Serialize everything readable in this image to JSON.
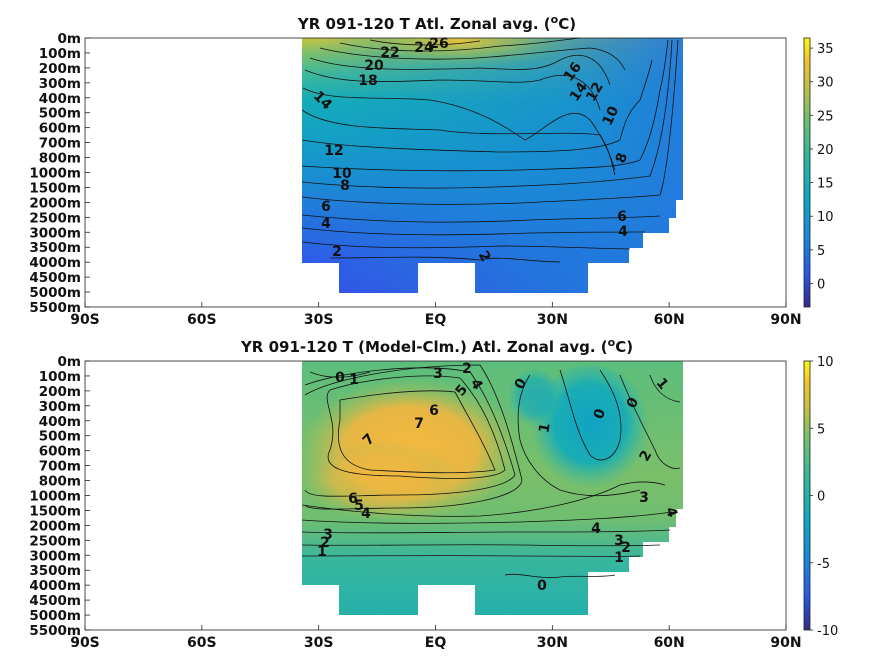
{
  "chart_data": [
    {
      "type": "heatmap",
      "title_main": "YR 091-120 T Atl. Zonal avg. (",
      "title_sup": "o",
      "title_end": "C)",
      "x_ticks": [
        "90S",
        "60S",
        "30S",
        "EQ",
        "30N",
        "60N",
        "90N"
      ],
      "x_values": [
        -90,
        -60,
        -30,
        0,
        30,
        60,
        90
      ],
      "xlim": [
        -90,
        90
      ],
      "y_ticks": [
        "0m",
        "100m",
        "200m",
        "300m",
        "400m",
        "500m",
        "600m",
        "700m",
        "800m",
        "1000m",
        "1500m",
        "2000m",
        "2500m",
        "3000m",
        "3500m",
        "4000m",
        "4500m",
        "5000m",
        "5500m"
      ],
      "colorbar": {
        "ticks": [
          "35",
          "30",
          "25",
          "20",
          "15",
          "10",
          "5",
          "0"
        ],
        "values": [
          35,
          30,
          25,
          20,
          15,
          10,
          5,
          0
        ],
        "min": -3.5,
        "max": 36.5
      },
      "contour_labels": [
        {
          "text": "26",
          "lat": 0,
          "depth": "0m"
        },
        {
          "text": "24",
          "lat": -4,
          "depth": "100m"
        },
        {
          "text": "22",
          "lat": -12,
          "depth": "100m"
        },
        {
          "text": "20",
          "lat": -16,
          "depth": "200m"
        },
        {
          "text": "18",
          "lat": -18,
          "depth": "300m"
        },
        {
          "text": "16",
          "lat": 45,
          "depth": "300m"
        },
        {
          "text": "14",
          "lat": -30,
          "depth": "400m"
        },
        {
          "text": "14",
          "lat": 43,
          "depth": "400m"
        },
        {
          "text": "12",
          "lat": 48,
          "depth": "300m"
        },
        {
          "text": "10",
          "lat": 52,
          "depth": "500m"
        },
        {
          "text": "12",
          "lat": -26,
          "depth": "700m"
        },
        {
          "text": "8",
          "lat": 49,
          "depth": "800m"
        },
        {
          "text": "10",
          "lat": -24,
          "depth": "1000m"
        },
        {
          "text": "8",
          "lat": -23,
          "depth": "1500m"
        },
        {
          "text": "6",
          "lat": -28,
          "depth": "2000m"
        },
        {
          "text": "6",
          "lat": 48,
          "depth": "2500m"
        },
        {
          "text": "4",
          "lat": -28,
          "depth": "2500m"
        },
        {
          "text": "4",
          "lat": 48,
          "depth": "3000m"
        },
        {
          "text": "2",
          "lat": -25,
          "depth": "3500m"
        },
        {
          "text": "2",
          "lat": 12,
          "depth": "4000m"
        }
      ]
    },
    {
      "type": "heatmap",
      "title_main": "YR 091-120 T (Model-Clm.) Atl. Zonal avg. (",
      "title_sup": "o",
      "title_end": "C)",
      "x_ticks": [
        "90S",
        "60S",
        "30S",
        "EQ",
        "30N",
        "60N",
        "90N"
      ],
      "x_values": [
        -90,
        -60,
        -30,
        0,
        30,
        60,
        90
      ],
      "xlim": [
        -90,
        90
      ],
      "y_ticks": [
        "0m",
        "100m",
        "200m",
        "300m",
        "400m",
        "500m",
        "600m",
        "700m",
        "800m",
        "1000m",
        "1500m",
        "2000m",
        "2500m",
        "3000m",
        "3500m",
        "4000m",
        "4500m",
        "5000m",
        "5500m"
      ],
      "colorbar": {
        "ticks": [
          "10",
          "5",
          "0",
          "-5",
          "-10"
        ],
        "values": [
          10,
          5,
          0,
          -5,
          -10
        ],
        "min": -10,
        "max": 10
      },
      "contour_labels": [
        {
          "text": "0",
          "lat": -25,
          "depth": "100m"
        },
        {
          "text": "1",
          "lat": -22,
          "depth": "100m"
        },
        {
          "text": "3",
          "lat": 0,
          "depth": "0m"
        },
        {
          "text": "2",
          "lat": 8,
          "depth": "0m"
        },
        {
          "text": "5",
          "lat": 5,
          "depth": "200m"
        },
        {
          "text": "4",
          "lat": 9,
          "depth": "200m"
        },
        {
          "text": "0",
          "lat": 22,
          "depth": "200m"
        },
        {
          "text": "1",
          "lat": 57,
          "depth": "200m"
        },
        {
          "text": "6",
          "lat": 0,
          "depth": "400m"
        },
        {
          "text": "7",
          "lat": -4,
          "depth": "400m"
        },
        {
          "text": "0",
          "lat": 41,
          "depth": "400m"
        },
        {
          "text": "0",
          "lat": 50,
          "depth": "300m"
        },
        {
          "text": "1",
          "lat": 26,
          "depth": "500m"
        },
        {
          "text": "7",
          "lat": -17,
          "depth": "600m"
        },
        {
          "text": "2",
          "lat": 54,
          "depth": "700m"
        },
        {
          "text": "6",
          "lat": -21,
          "depth": "1500m"
        },
        {
          "text": "5",
          "lat": -19,
          "depth": "1500m"
        },
        {
          "text": "4",
          "lat": -17,
          "depth": "2000m"
        },
        {
          "text": "3",
          "lat": 54,
          "depth": "1500m"
        },
        {
          "text": "4",
          "lat": 61,
          "depth": "2000m"
        },
        {
          "text": "4",
          "lat": 40,
          "depth": "2500m"
        },
        {
          "text": "3",
          "lat": -28,
          "depth": "2500m"
        },
        {
          "text": "2",
          "lat": -29,
          "depth": "3000m"
        },
        {
          "text": "1",
          "lat": -30,
          "depth": "3000m"
        },
        {
          "text": "3",
          "lat": 47,
          "depth": "3000m"
        },
        {
          "text": "2",
          "lat": 48,
          "depth": "3000m"
        },
        {
          "text": "1",
          "lat": 46,
          "depth": "3500m"
        },
        {
          "text": "0",
          "lat": 27,
          "depth": "4000m"
        }
      ]
    }
  ]
}
